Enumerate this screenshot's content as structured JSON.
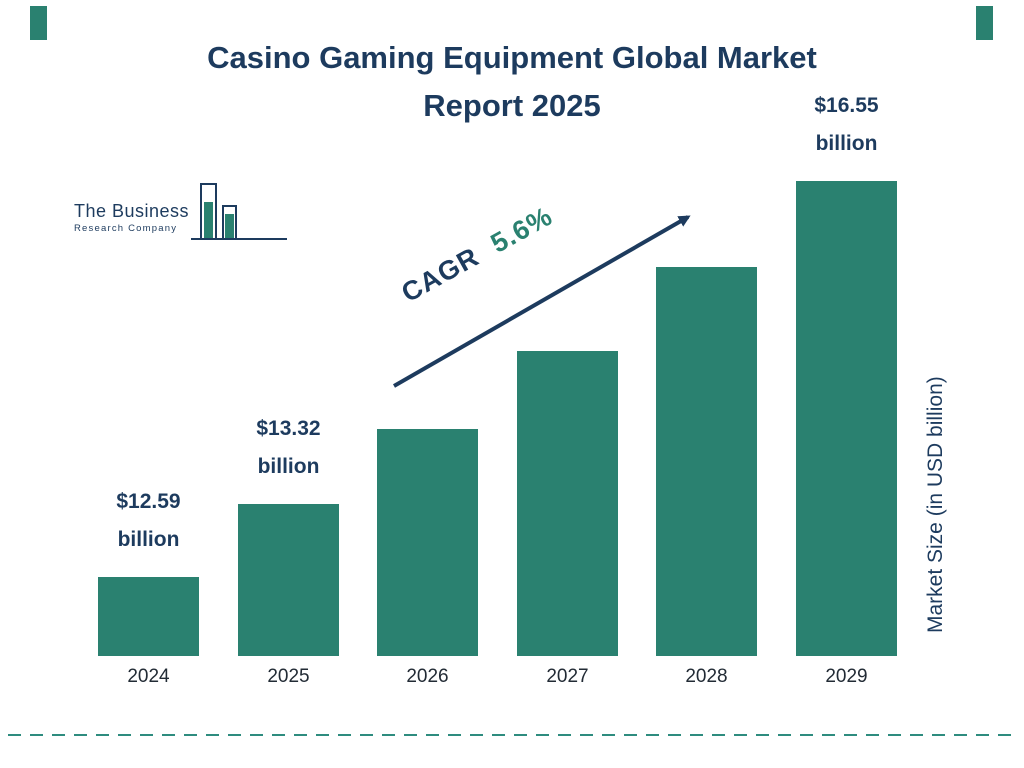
{
  "header": {
    "title_line1": "Casino Gaming Equipment Global Market",
    "title_line2": "Report 2025"
  },
  "logo": {
    "line1": "The Business",
    "line2": "Research Company"
  },
  "chart_data": {
    "type": "bar",
    "title": "Casino Gaming Equipment Global Market Report 2025",
    "categories": [
      "2024",
      "2025",
      "2026",
      "2027",
      "2028",
      "2029"
    ],
    "values": [
      12.59,
      13.32,
      14.07,
      14.85,
      15.69,
      16.55
    ],
    "value_unit": "USD billion",
    "value_labels": [
      {
        "index": 0,
        "line1": "$12.59",
        "line2": "billion"
      },
      {
        "index": 1,
        "line1": "$13.32",
        "line2": "billion"
      },
      {
        "index": 5,
        "line1": "$16.55",
        "line2": "billion"
      }
    ],
    "cagr": {
      "label": "CAGR",
      "value": "5.6%"
    },
    "ylabel": "Market Size (in USD billion)",
    "xlabel": "",
    "bar_color": "#2a8170",
    "accent_navy": "#1d3b5e",
    "axis_baseline_value": 11.8,
    "gridlines": false,
    "legend": false
  }
}
